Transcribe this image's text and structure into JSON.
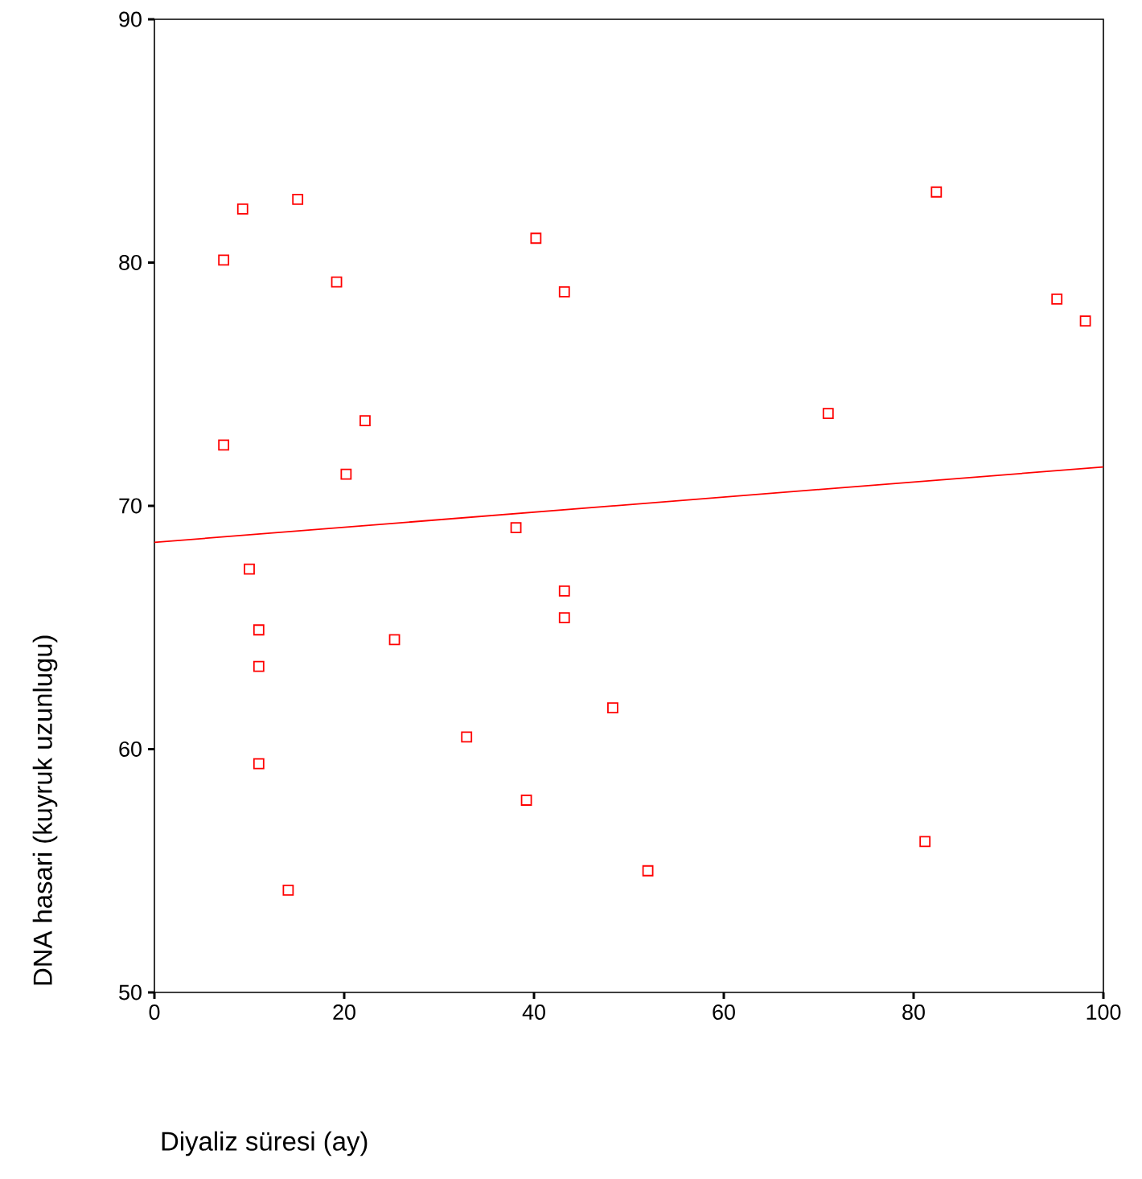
{
  "chart_data": {
    "type": "scatter",
    "xlabel": "Diyaliz süresi (ay)",
    "ylabel": "DNA hasari (kuyruk uzunlugu)",
    "xlim": [
      0,
      100
    ],
    "ylim": [
      50,
      90
    ],
    "xticks": [
      0,
      20,
      40,
      60,
      80,
      100
    ],
    "yticks": [
      50,
      60,
      70,
      80,
      90
    ],
    "grid": false,
    "series": [
      {
        "type": "scatter",
        "marker": "square",
        "color": "#ff0000",
        "x": [
          7.3,
          9.3,
          15.1,
          19.2,
          7.3,
          22.2,
          20.2,
          10.0,
          11.0,
          11.0,
          11.0,
          14.1,
          25.3,
          32.9,
          38.1,
          40.2,
          43.2,
          43.2,
          43.2,
          39.2,
          48.3,
          52.0,
          71.0,
          81.2,
          82.4,
          95.1,
          98.1
        ],
        "values": [
          80.1,
          82.2,
          82.6,
          79.2,
          72.5,
          73.5,
          71.3,
          67.4,
          64.9,
          63.4,
          59.4,
          54.2,
          64.5,
          60.5,
          69.1,
          81.0,
          78.8,
          66.5,
          65.4,
          57.9,
          61.7,
          55.0,
          73.8,
          56.2,
          82.9,
          78.5,
          77.6
        ]
      },
      {
        "type": "line",
        "marker": "none",
        "line_style": "solid",
        "color": "#ff0000",
        "x": [
          0,
          100
        ],
        "values": [
          68.5,
          71.6
        ]
      }
    ]
  }
}
